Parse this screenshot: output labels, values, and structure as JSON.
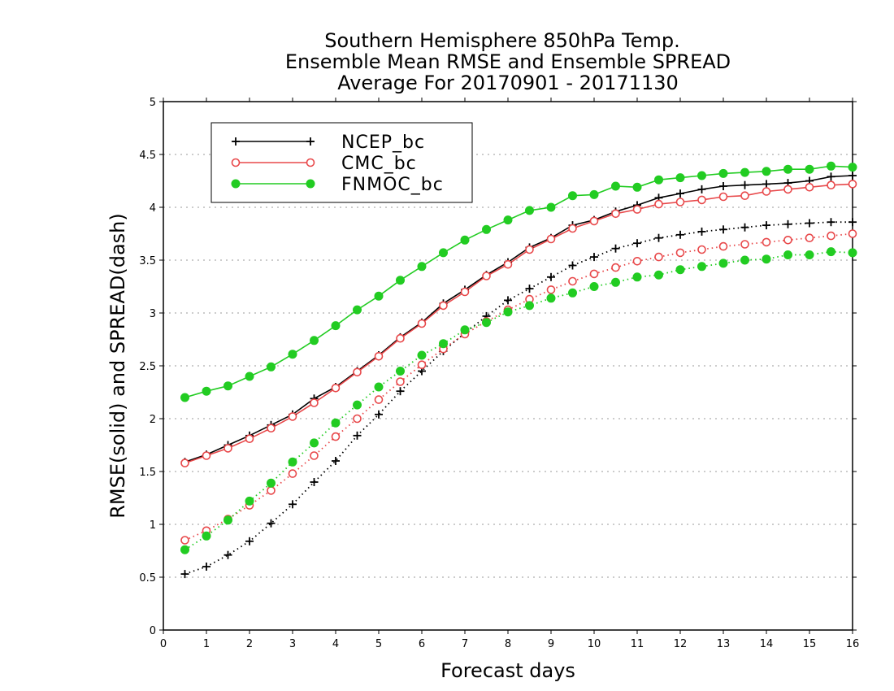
{
  "chart_data": {
    "type": "line",
    "title": [
      "Southern Hemisphere 850hPa Temp.",
      "Ensemble Mean RMSE and Ensemble SPREAD",
      "Average For 20170901 - 20171130"
    ],
    "xlabel": "Forecast days",
    "ylabel": "RMSE(solid) and SPREAD(dash)",
    "xlim": [
      0,
      16
    ],
    "ylim": [
      0,
      5
    ],
    "xticks": [
      0,
      1,
      2,
      3,
      4,
      5,
      6,
      7,
      8,
      9,
      10,
      11,
      12,
      13,
      14,
      15,
      16
    ],
    "xtick_labels": [
      "0",
      "1",
      "2",
      "3",
      "4",
      "5",
      "6",
      "7",
      "8",
      "9",
      "10",
      "11",
      "12",
      "13",
      "14",
      "15",
      "16"
    ],
    "yticks": [
      0,
      0.5,
      1,
      1.5,
      2,
      2.5,
      3,
      3.5,
      4,
      4.5,
      5
    ],
    "ytick_labels": [
      "0",
      "0.5",
      "1",
      "1.5",
      "2",
      "2.5",
      "3",
      "3.5",
      "4",
      "4.5",
      "5"
    ],
    "grid": "horizontal-dotted",
    "legend_position": "top-left",
    "x": [
      0.5,
      1,
      1.5,
      2,
      2.5,
      3,
      3.5,
      4,
      4.5,
      5,
      5.5,
      6,
      6.5,
      7,
      7.5,
      8,
      8.5,
      9,
      9.5,
      10,
      10.5,
      11,
      11.5,
      12,
      12.5,
      13,
      13.5,
      14,
      14.5,
      15,
      15.5,
      16
    ],
    "series": [
      {
        "name": "NCEP_bc",
        "color": "#000000",
        "marker": "plus",
        "rmse": [
          1.59,
          1.66,
          1.75,
          1.84,
          1.94,
          2.04,
          2.19,
          2.3,
          2.45,
          2.6,
          2.77,
          2.91,
          3.09,
          3.22,
          3.36,
          3.48,
          3.62,
          3.71,
          3.83,
          3.88,
          3.96,
          4.02,
          4.09,
          4.13,
          4.17,
          4.2,
          4.21,
          4.22,
          4.23,
          4.25,
          4.29,
          4.3
        ],
        "spread": [
          0.53,
          0.6,
          0.71,
          0.84,
          1.01,
          1.19,
          1.4,
          1.6,
          1.84,
          2.04,
          2.26,
          2.45,
          2.64,
          2.81,
          2.97,
          3.12,
          3.23,
          3.34,
          3.45,
          3.53,
          3.61,
          3.66,
          3.71,
          3.74,
          3.77,
          3.79,
          3.81,
          3.83,
          3.84,
          3.85,
          3.86,
          3.86
        ]
      },
      {
        "name": "CMC_bc",
        "color": "#e8484a",
        "marker": "circle-open",
        "rmse": [
          1.58,
          1.65,
          1.72,
          1.81,
          1.91,
          2.02,
          2.15,
          2.29,
          2.44,
          2.59,
          2.76,
          2.9,
          3.07,
          3.2,
          3.35,
          3.46,
          3.6,
          3.7,
          3.8,
          3.87,
          3.94,
          3.98,
          4.03,
          4.05,
          4.07,
          4.1,
          4.11,
          4.15,
          4.17,
          4.19,
          4.21,
          4.22
        ],
        "spread": [
          0.85,
          0.94,
          1.05,
          1.18,
          1.32,
          1.48,
          1.65,
          1.83,
          2.0,
          2.18,
          2.35,
          2.51,
          2.66,
          2.8,
          2.92,
          3.03,
          3.13,
          3.22,
          3.3,
          3.37,
          3.43,
          3.49,
          3.53,
          3.57,
          3.6,
          3.63,
          3.65,
          3.67,
          3.69,
          3.71,
          3.73,
          3.75
        ]
      },
      {
        "name": "FNMOC_bc",
        "color": "#22cc22",
        "marker": "circle-filled",
        "rmse": [
          2.2,
          2.26,
          2.31,
          2.4,
          2.49,
          2.61,
          2.74,
          2.88,
          3.03,
          3.16,
          3.31,
          3.44,
          3.57,
          3.69,
          3.79,
          3.88,
          3.97,
          4.0,
          4.11,
          4.12,
          4.2,
          4.19,
          4.26,
          4.28,
          4.3,
          4.32,
          4.33,
          4.34,
          4.36,
          4.36,
          4.39,
          4.38
        ],
        "spread": [
          0.76,
          0.89,
          1.04,
          1.22,
          1.39,
          1.59,
          1.77,
          1.96,
          2.13,
          2.3,
          2.45,
          2.6,
          2.71,
          2.84,
          2.91,
          3.01,
          3.07,
          3.14,
          3.19,
          3.25,
          3.29,
          3.34,
          3.36,
          3.41,
          3.44,
          3.47,
          3.5,
          3.51,
          3.55,
          3.55,
          3.58,
          3.57
        ]
      }
    ]
  }
}
